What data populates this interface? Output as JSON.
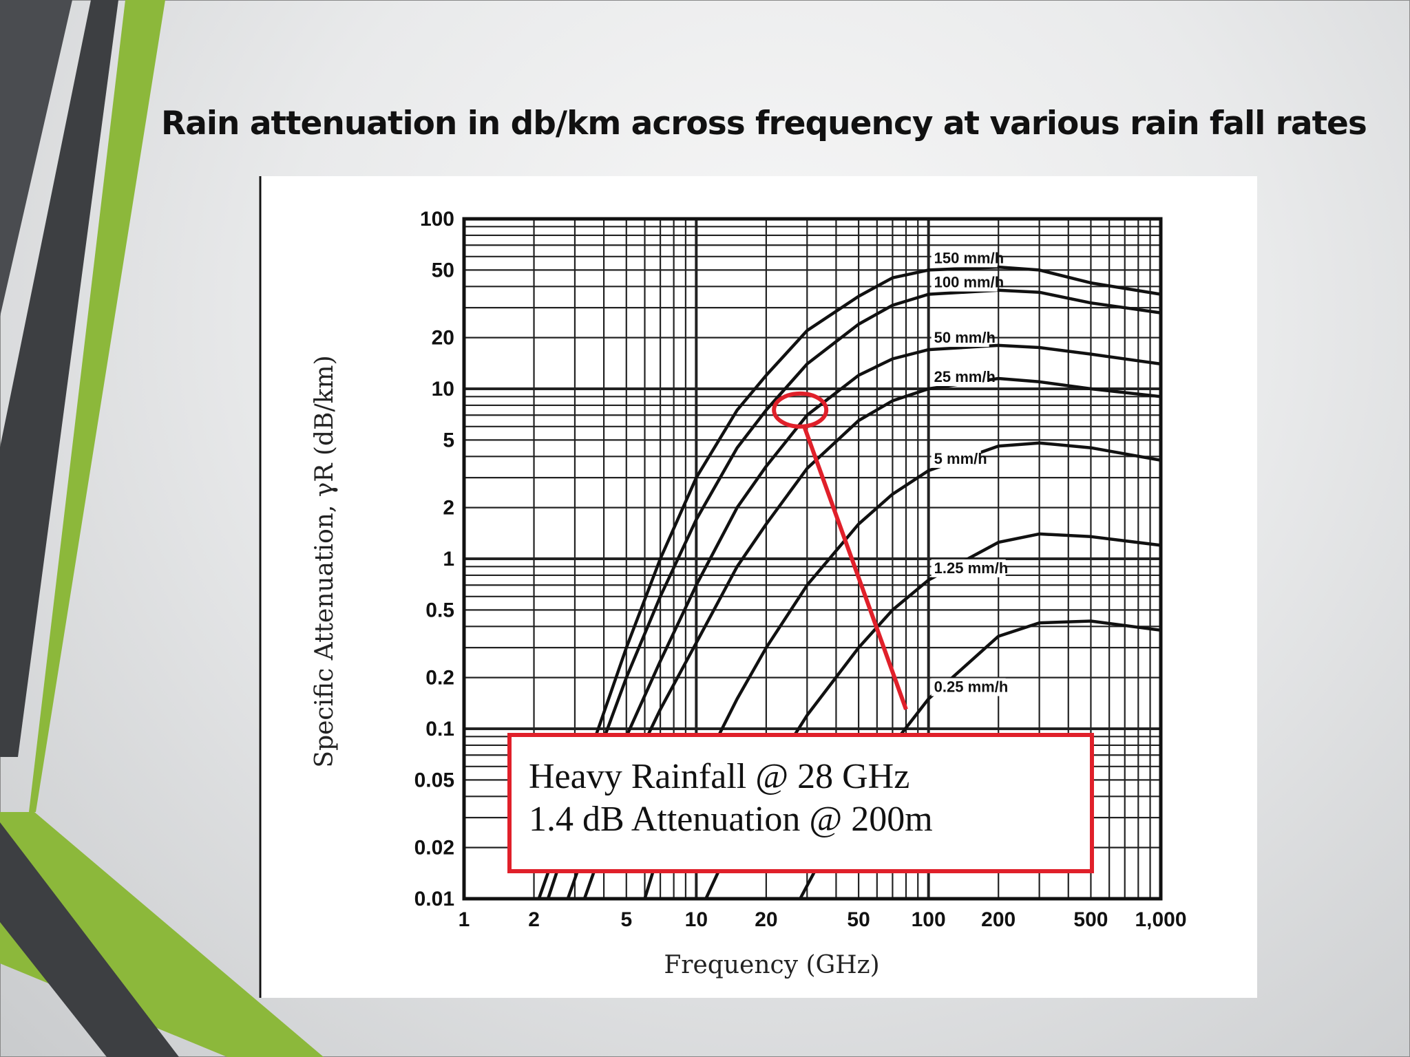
{
  "slide": {
    "title": "Rain attenuation in db/km across frequency at various rain fall rates",
    "theme_colors": {
      "green": "#8cb83b",
      "dark_gray": "#3d3f42",
      "callout_red": "#e0202a"
    }
  },
  "chart_data": {
    "type": "line",
    "xlabel": "Frequency (GHz)",
    "ylabel": "Specific Attenuation, γR (dB/km)",
    "x_scale": "log",
    "y_scale": "log",
    "xlim": [
      1,
      1000
    ],
    "ylim": [
      0.01,
      100
    ],
    "x_ticks": [
      1,
      2,
      5,
      10,
      20,
      50,
      100,
      200,
      500,
      1000
    ],
    "x_tick_labels": [
      "1",
      "2",
      "5",
      "10",
      "20",
      "50",
      "100",
      "200",
      "500",
      "1,000"
    ],
    "y_ticks": [
      0.01,
      0.02,
      0.05,
      0.1,
      0.2,
      0.5,
      1,
      2,
      5,
      10,
      20,
      50,
      100
    ],
    "y_tick_labels": [
      "0.01",
      "0.02",
      "0.05",
      "0.1",
      "0.2",
      "0.5",
      "1",
      "2",
      "5",
      "10",
      "20",
      "50",
      "100"
    ],
    "grid": true,
    "series": [
      {
        "name": "150 mm/h",
        "x": [
          2.1,
          3,
          5,
          7,
          10,
          15,
          20,
          30,
          50,
          70,
          100,
          200,
          300,
          500,
          1000
        ],
        "y": [
          0.01,
          0.04,
          0.3,
          1.0,
          3.0,
          7.5,
          12,
          22,
          35,
          45,
          50,
          52,
          50,
          42,
          36
        ]
      },
      {
        "name": "100 mm/h",
        "x": [
          2.3,
          3,
          5,
          7,
          10,
          15,
          20,
          30,
          50,
          70,
          100,
          200,
          300,
          500,
          1000
        ],
        "y": [
          0.01,
          0.03,
          0.2,
          0.6,
          1.7,
          4.5,
          7.5,
          14,
          24,
          31,
          36,
          38,
          37,
          32,
          28
        ]
      },
      {
        "name": "50 mm/h",
        "x": [
          2.8,
          4,
          5,
          7,
          10,
          15,
          20,
          30,
          50,
          70,
          100,
          200,
          300,
          500,
          1000
        ],
        "y": [
          0.01,
          0.04,
          0.09,
          0.25,
          0.7,
          2.0,
          3.5,
          7.0,
          12,
          15,
          17,
          18,
          17.5,
          16,
          14
        ]
      },
      {
        "name": "25 mm/h",
        "x": [
          3.3,
          5,
          7,
          10,
          15,
          20,
          30,
          50,
          70,
          100,
          200,
          300,
          500,
          1000
        ],
        "y": [
          0.01,
          0.05,
          0.13,
          0.32,
          0.9,
          1.6,
          3.4,
          6.5,
          8.5,
          10,
          11.5,
          11,
          10,
          9
        ]
      },
      {
        "name": "5 mm/h",
        "x": [
          6,
          7,
          10,
          15,
          20,
          30,
          50,
          70,
          100,
          200,
          300,
          500,
          1000
        ],
        "y": [
          0.01,
          0.02,
          0.05,
          0.15,
          0.3,
          0.7,
          1.6,
          2.4,
          3.3,
          4.6,
          4.8,
          4.5,
          3.8
        ]
      },
      {
        "name": "1.25 mm/h",
        "x": [
          11,
          15,
          20,
          30,
          50,
          70,
          100,
          200,
          300,
          500,
          1000
        ],
        "y": [
          0.01,
          0.025,
          0.05,
          0.12,
          0.3,
          0.5,
          0.75,
          1.25,
          1.4,
          1.35,
          1.2
        ]
      },
      {
        "name": "0.25 mm/h",
        "x": [
          28,
          40,
          50,
          70,
          100,
          200,
          300,
          500,
          1000
        ],
        "y": [
          0.01,
          0.025,
          0.04,
          0.08,
          0.15,
          0.35,
          0.42,
          0.43,
          0.38
        ]
      }
    ],
    "annotation": {
      "lines": [
        "Heavy Rainfall @ 28 GHz",
        "1.4 dB Attenuation @ 200m"
      ],
      "marker_point": {
        "x": 28,
        "y": 7.5
      },
      "pointer_tip": {
        "x": 80,
        "y": 0.13
      }
    }
  }
}
